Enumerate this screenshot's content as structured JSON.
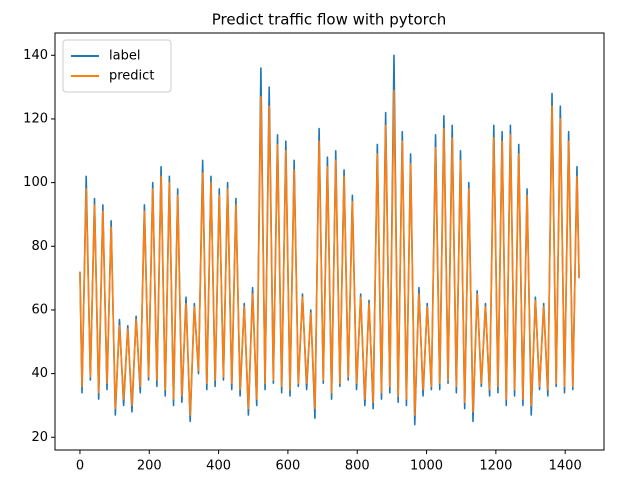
{
  "chart_data": {
    "type": "line",
    "title": "Predict traffic flow with pytorch",
    "x": [
      0,
      6,
      18,
      30,
      42,
      54,
      66,
      78,
      90,
      102,
      114,
      126,
      138,
      150,
      162,
      174,
      186,
      198,
      210,
      222,
      234,
      246,
      258,
      270,
      282,
      294,
      306,
      318,
      330,
      342,
      354,
      366,
      378,
      390,
      402,
      414,
      426,
      438,
      450,
      462,
      474,
      486,
      498,
      510,
      522,
      534,
      546,
      558,
      570,
      582,
      594,
      606,
      618,
      630,
      642,
      654,
      666,
      678,
      690,
      702,
      714,
      726,
      738,
      750,
      762,
      774,
      786,
      798,
      810,
      822,
      834,
      846,
      858,
      870,
      882,
      894,
      906,
      918,
      930,
      942,
      954,
      966,
      978,
      990,
      1002,
      1014,
      1026,
      1038,
      1050,
      1062,
      1074,
      1086,
      1098,
      1110,
      1122,
      1134,
      1146,
      1158,
      1170,
      1182,
      1194,
      1206,
      1218,
      1230,
      1242,
      1254,
      1266,
      1278,
      1290,
      1302,
      1314,
      1326,
      1338,
      1350,
      1362,
      1374,
      1386,
      1398,
      1410,
      1422,
      1434,
      1440
    ],
    "series": [
      {
        "name": "label",
        "color": "#1f77b4",
        "values": [
          72,
          34,
          102,
          38,
          95,
          32,
          93,
          35,
          88,
          27,
          57,
          30,
          55,
          28,
          58,
          34,
          93,
          38,
          100,
          36,
          105,
          33,
          102,
          30,
          98,
          31,
          64,
          25,
          62,
          40,
          107,
          35,
          102,
          36,
          98,
          38,
          100,
          35,
          95,
          33,
          62,
          27,
          67,
          30,
          136,
          35,
          130,
          37,
          115,
          34,
          113,
          33,
          107,
          36,
          65,
          35,
          60,
          26,
          117,
          37,
          108,
          32,
          110,
          36,
          104,
          38,
          96,
          35,
          65,
          30,
          63,
          29,
          112,
          32,
          122,
          34,
          140,
          31,
          116,
          30,
          109,
          24,
          67,
          33,
          62,
          35,
          115,
          35,
          121,
          37,
          118,
          34,
          110,
          29,
          100,
          25,
          66,
          36,
          62,
          33,
          118,
          34,
          116,
          30,
          118,
          33,
          112,
          30,
          98,
          27,
          64,
          35,
          62,
          33,
          128,
          36,
          124,
          34,
          116,
          35,
          105,
          70
        ]
      },
      {
        "name": "predict",
        "color": "#ff7f0e",
        "values": [
          72,
          36,
          98,
          39,
          93,
          34,
          91,
          37,
          86,
          29,
          55,
          32,
          54,
          30,
          57,
          36,
          91,
          39,
          98,
          38,
          102,
          35,
          100,
          32,
          96,
          33,
          62,
          27,
          61,
          41,
          103,
          37,
          100,
          38,
          96,
          39,
          98,
          37,
          93,
          35,
          61,
          29,
          65,
          32,
          127,
          37,
          124,
          38,
          112,
          36,
          110,
          35,
          104,
          37,
          64,
          37,
          59,
          29,
          113,
          38,
          105,
          34,
          107,
          37,
          102,
          39,
          94,
          37,
          64,
          32,
          62,
          31,
          109,
          34,
          118,
          36,
          129,
          33,
          113,
          32,
          106,
          27,
          65,
          35,
          61,
          36,
          111,
          37,
          117,
          38,
          114,
          36,
          107,
          31,
          98,
          28,
          65,
          37,
          61,
          35,
          114,
          36,
          113,
          32,
          115,
          35,
          109,
          32,
          96,
          30,
          63,
          36,
          61,
          35,
          124,
          37,
          120,
          36,
          113,
          36,
          102,
          70
        ]
      }
    ],
    "xlim": [
      -72,
      1512
    ],
    "xticks": [
      0,
      200,
      400,
      600,
      800,
      1000,
      1200,
      1400
    ],
    "ylim": [
      16,
      147
    ],
    "yticks": [
      20,
      40,
      60,
      80,
      100,
      120,
      140
    ],
    "grid": false,
    "legend": "upper left"
  }
}
